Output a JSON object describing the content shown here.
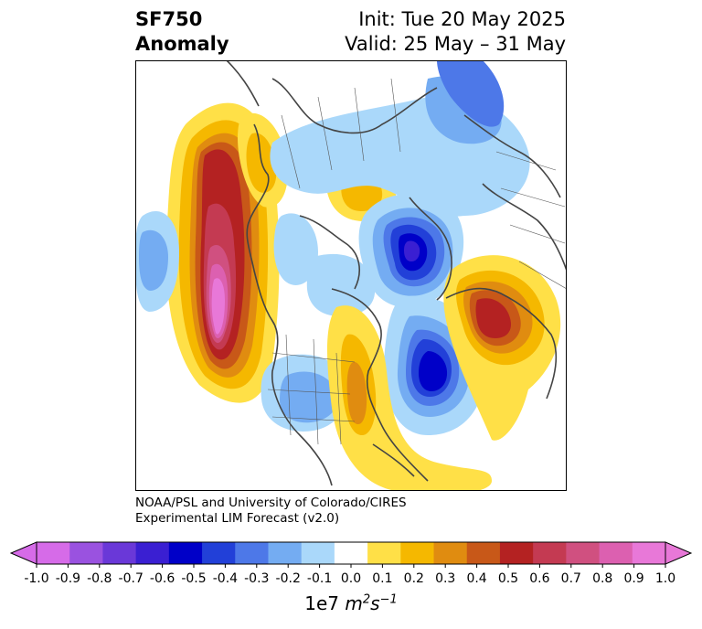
{
  "title": {
    "variable": "SF750",
    "subtitle": "Anomaly",
    "init": "Init: Tue 20 May 2025",
    "valid": "Valid: 25 May – 31 May"
  },
  "credit": {
    "line1": "NOAA/PSL and University of Colorado/CIRES",
    "line2": "Experimental LIM Forecast (v2.0)"
  },
  "colorbar": {
    "ticks": [
      "-1.0",
      "-0.9",
      "-0.8",
      "-0.7",
      "-0.6",
      "-0.5",
      "-0.4",
      "-0.3",
      "-0.2",
      "-0.1",
      "0.0",
      "0.1",
      "0.2",
      "0.3",
      "0.4",
      "0.5",
      "0.6",
      "0.7",
      "0.8",
      "0.9",
      "1.0"
    ],
    "colors": [
      "#d66be8",
      "#9a52e0",
      "#6a38d8",
      "#3a1fd2",
      "#0000c8",
      "#2240d8",
      "#4d78e8",
      "#74acf2",
      "#aad8fa",
      "#ffffff",
      "#ffe047",
      "#f5b800",
      "#e08c10",
      "#c85818",
      "#b42222",
      "#c43a52",
      "#d05080",
      "#dc60b0",
      "#e878d8"
    ],
    "scale_label": "1e7",
    "units_label": "m",
    "units_sup1": "2",
    "units_mid": "s",
    "units_sup2": "−1"
  },
  "map": {
    "projection": "polar-stereographic-north",
    "anomalies": [
      {
        "name": "east-pacific-positive",
        "sign": "positive",
        "peak": 0.9
      },
      {
        "name": "hudson-bay-positive",
        "sign": "positive",
        "peak": 0.2
      },
      {
        "name": "east-us-positive",
        "sign": "positive",
        "peak": 0.3
      },
      {
        "name": "europe-positive",
        "sign": "positive",
        "peak": 0.6
      },
      {
        "name": "arctic-negative",
        "sign": "negative",
        "peak": -0.6
      },
      {
        "name": "north-atlantic-negative",
        "sign": "negative",
        "peak": -0.6
      },
      {
        "name": "west-us-negative",
        "sign": "negative",
        "peak": -0.3
      },
      {
        "name": "central-pacific-negative",
        "sign": "negative",
        "peak": -0.3
      }
    ]
  }
}
